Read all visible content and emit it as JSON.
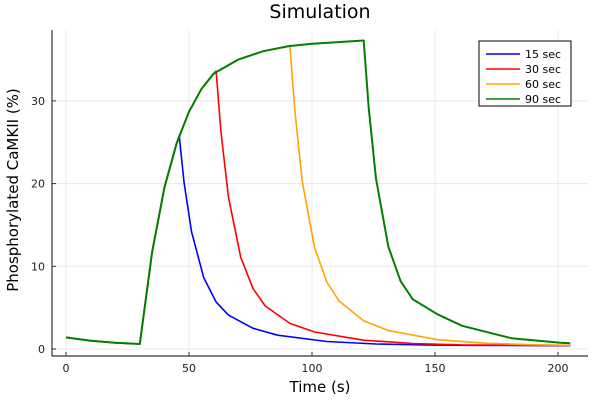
{
  "chart_data": {
    "type": "line",
    "title": "Simulation",
    "xlabel": "Time (s)",
    "ylabel": "Phosphorylated CaMKII (%)",
    "xlim": [
      -5,
      212
    ],
    "ylim": [
      -0.8,
      38.5
    ],
    "xticks": [
      0,
      50,
      100,
      150,
      200
    ],
    "yticks": [
      0,
      10,
      20,
      30
    ],
    "grid": true,
    "legend_position": "top-right",
    "series": [
      {
        "name": "15 sec",
        "color": "#0000ff",
        "x": [
          0,
          10,
          20,
          30,
          35,
          40,
          45,
          46,
          48,
          51,
          56,
          61,
          66,
          76,
          86,
          106,
          126,
          146,
          166,
          205
        ],
        "y": [
          1.4,
          1.0,
          0.75,
          0.6,
          11.7,
          19.5,
          24.9,
          25.8,
          20.1,
          14.2,
          8.6,
          5.7,
          4.1,
          2.5,
          1.67,
          0.91,
          0.6,
          0.48,
          0.43,
          0.4
        ]
      },
      {
        "name": "30 sec",
        "color": "#ff0000",
        "x": [
          0,
          10,
          20,
          30,
          35,
          40,
          45,
          50,
          55,
          60,
          61,
          63,
          66,
          71,
          76,
          81,
          91,
          101,
          121,
          141,
          161,
          205
        ],
        "y": [
          1.4,
          1.0,
          0.75,
          0.6,
          11.7,
          19.5,
          24.9,
          28.7,
          31.4,
          33.3,
          33.6,
          26.2,
          18.4,
          11.1,
          7.3,
          5.2,
          3.1,
          2.06,
          1.06,
          0.67,
          0.5,
          0.42
        ]
      },
      {
        "name": "60 sec",
        "color": "#ffa500",
        "x": [
          0,
          10,
          20,
          30,
          35,
          40,
          45,
          50,
          55,
          60,
          70,
          80,
          91,
          93,
          96,
          101,
          106,
          111,
          121,
          131,
          151,
          171,
          191,
          205
        ],
        "y": [
          1.4,
          1.0,
          0.75,
          0.6,
          11.7,
          19.5,
          24.9,
          28.7,
          31.4,
          33.3,
          35.0,
          36.0,
          36.6,
          28.9,
          20.3,
          12.3,
          8.1,
          5.8,
          3.4,
          2.24,
          1.13,
          0.69,
          0.51,
          0.45
        ]
      },
      {
        "name": "90 sec",
        "color": "#008000",
        "x": [
          0,
          10,
          20,
          30,
          35,
          40,
          45,
          50,
          55,
          60,
          70,
          80,
          90,
          100,
          110,
          121,
          123,
          126,
          131,
          136,
          141,
          151,
          161,
          181,
          201,
          205
        ],
        "y": [
          1.4,
          1.0,
          0.75,
          0.6,
          11.7,
          19.5,
          24.9,
          28.7,
          31.4,
          33.3,
          35.0,
          36.0,
          36.6,
          36.9,
          37.1,
          37.3,
          29.3,
          20.6,
          12.4,
          8.2,
          6.0,
          4.2,
          2.8,
          1.3,
          0.75,
          0.7
        ]
      }
    ]
  }
}
